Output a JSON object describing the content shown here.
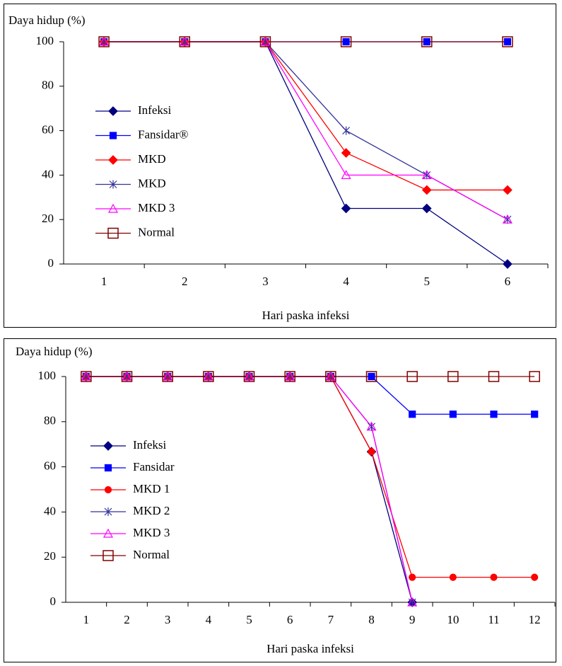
{
  "chart_data": [
    {
      "type": "line",
      "ylabel": "Daya hidup (%)",
      "xlabel": "Hari paska infeksi",
      "categories": [
        "1",
        "2",
        "3",
        "4",
        "5",
        "6"
      ],
      "ylim": [
        0,
        100
      ],
      "yticks": [
        0,
        20,
        40,
        60,
        80,
        100
      ],
      "legend": "left",
      "series": [
        {
          "name": "Infeksi",
          "color": "#000080",
          "marker": "diamond",
          "values": [
            100,
            100,
            100,
            25,
            25,
            0
          ]
        },
        {
          "name": "Fansidar®",
          "color": "#0000ff",
          "marker": "square",
          "values": [
            100,
            100,
            100,
            100,
            100,
            100
          ]
        },
        {
          "name": "MKD",
          "color": "#ff0000",
          "marker": "diamond",
          "values": [
            100,
            100,
            100,
            50,
            33.3,
            33.3
          ]
        },
        {
          "name": "MKD",
          "color": "#333399",
          "marker": "star",
          "values": [
            100,
            100,
            100,
            60,
            40,
            20
          ]
        },
        {
          "name": "MKD 3",
          "color": "#ff00ff",
          "marker": "triangle-open",
          "values": [
            100,
            100,
            100,
            40,
            40,
            20
          ]
        },
        {
          "name": "Normal",
          "color": "#800000",
          "marker": "square-open",
          "values": [
            100,
            100,
            100,
            100,
            100,
            100
          ]
        }
      ]
    },
    {
      "type": "line",
      "ylabel": "Daya hidup (%)",
      "xlabel": "Hari paska infeksi",
      "categories": [
        "1",
        "2",
        "3",
        "4",
        "5",
        "6",
        "7",
        "8",
        "9",
        "10",
        "11",
        "12"
      ],
      "ylim": [
        0,
        100
      ],
      "yticks": [
        0,
        20,
        40,
        60,
        80,
        100
      ],
      "legend": "left",
      "series": [
        {
          "name": "Infeksi",
          "color": "#000080",
          "marker": "diamond",
          "values": [
            100,
            100,
            100,
            100,
            100,
            100,
            100,
            66.7,
            0,
            null,
            null,
            null
          ]
        },
        {
          "name": "Fansidar",
          "color": "#0000ff",
          "marker": "square",
          "values": [
            100,
            100,
            100,
            100,
            100,
            100,
            100,
            100,
            83.3,
            83.3,
            83.3,
            83.3
          ]
        },
        {
          "name": "MKD 1",
          "color": "#ff0000",
          "marker": "circle",
          "values": [
            100,
            100,
            100,
            100,
            100,
            100,
            100,
            66.7,
            11.1,
            11.1,
            11.1,
            11.1
          ]
        },
        {
          "name": "MKD 2",
          "color": "#333399",
          "marker": "star",
          "values": [
            100,
            100,
            100,
            100,
            100,
            100,
            100,
            77.8,
            0,
            null,
            null,
            null
          ]
        },
        {
          "name": "MKD 3",
          "color": "#ff00ff",
          "marker": "triangle-open",
          "values": [
            100,
            100,
            100,
            100,
            100,
            100,
            100,
            77.8,
            0,
            null,
            null,
            null
          ]
        },
        {
          "name": "Normal",
          "color": "#800000",
          "marker": "square-open",
          "values": [
            100,
            100,
            100,
            100,
            100,
            100,
            100,
            100,
            100,
            100,
            100,
            100
          ]
        }
      ]
    }
  ]
}
